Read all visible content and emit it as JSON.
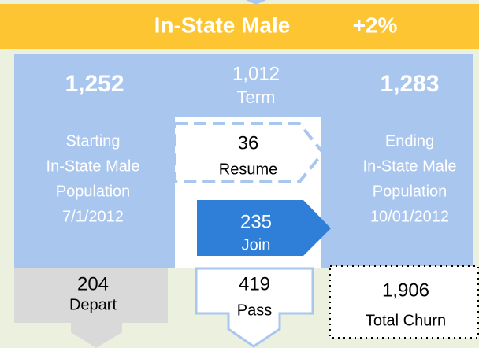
{
  "banner": {
    "title": "In-State Male",
    "change": "+2%"
  },
  "starting": {
    "value": "1,252",
    "lines": [
      "Starting",
      "In-State Male",
      "Population",
      "7/1/2012"
    ]
  },
  "term": {
    "value": "1,012",
    "label": "Term"
  },
  "resume": {
    "value": "36",
    "label": "Resume"
  },
  "join": {
    "value": "235",
    "label": "Join"
  },
  "ending": {
    "value": "1,283",
    "lines": [
      "Ending",
      "In-State Male",
      "Population",
      "10/01/2012"
    ]
  },
  "depart": {
    "value": "204",
    "label": "Depart"
  },
  "pass": {
    "value": "419",
    "label": "Pass"
  },
  "churn": {
    "value": "1,906",
    "label": "Total Churn"
  }
}
